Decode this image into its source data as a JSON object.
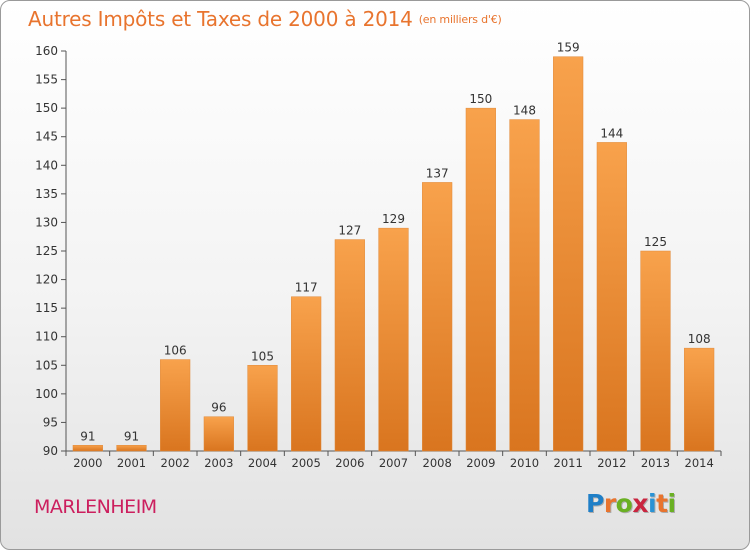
{
  "title": "Autres Impôts et Taxes de 2000 à 2014",
  "subtitle": "(en milliers d'€)",
  "commune": "MARLENHEIM",
  "logo": {
    "letters": [
      "P",
      "r",
      "o",
      "x",
      "i",
      "t",
      "i"
    ],
    "colors": [
      "#1f7fc7",
      "#e8742e",
      "#6ab023",
      "#c9253f",
      "#2a93d5",
      "#e8742e",
      "#6ab023"
    ]
  },
  "colors": {
    "bar_top": "#f8a24c",
    "bar_bottom": "#d9751f",
    "title": "#e8742e",
    "commune": "#cc1f5e",
    "axis": "#555555"
  },
  "chart_data": {
    "type": "bar",
    "categories": [
      "2000",
      "2001",
      "2002",
      "2003",
      "2004",
      "2005",
      "2006",
      "2007",
      "2008",
      "2009",
      "2010",
      "2011",
      "2012",
      "2013",
      "2014"
    ],
    "values": [
      91,
      91,
      106,
      96,
      105,
      117,
      127,
      129,
      137,
      150,
      148,
      159,
      144,
      125,
      108
    ],
    "ylim": [
      90,
      160
    ],
    "yticks": [
      90,
      95,
      100,
      105,
      110,
      115,
      120,
      125,
      130,
      135,
      140,
      145,
      150,
      155,
      160
    ],
    "grid": false,
    "data_labels": true
  }
}
